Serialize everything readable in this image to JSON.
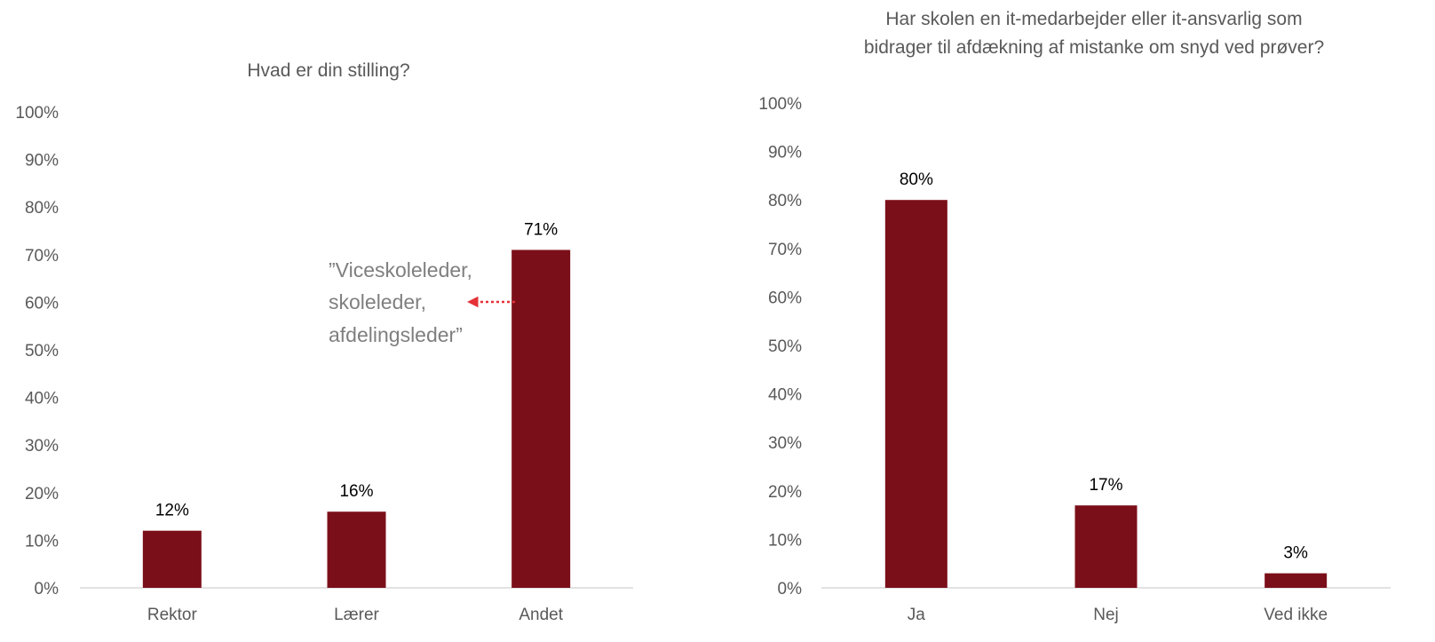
{
  "colors": {
    "bar": "#7b0f19",
    "axis": "#d9d9d9",
    "arrow": "#e53238"
  },
  "chart_data": [
    {
      "type": "bar",
      "title": "Hvad er din stilling?",
      "categories": [
        "Rektor",
        "Lærer",
        "Andet"
      ],
      "values": [
        12,
        16,
        71
      ],
      "data_labels": [
        "12%",
        "16%",
        "71%"
      ],
      "ylim": [
        0,
        100
      ],
      "y_ticks": [
        "0%",
        "10%",
        "20%",
        "30%",
        "40%",
        "50%",
        "60%",
        "70%",
        "80%",
        "90%",
        "100%"
      ],
      "grid": false,
      "annotation": {
        "lines": [
          "”Viceskoleleder,",
          "skoleleder,",
          "afdelingsleder”"
        ],
        "points_to": "Andet"
      }
    },
    {
      "type": "bar",
      "title_lines": [
        "Har skolen en it-medarbejder eller it-ansvarlig som",
        "bidrager til afdækning af mistanke om snyd ved prøver?"
      ],
      "categories": [
        "Ja",
        "Nej",
        "Ved ikke"
      ],
      "values": [
        80,
        17,
        3
      ],
      "data_labels": [
        "80%",
        "17%",
        "3%"
      ],
      "ylim": [
        0,
        100
      ],
      "y_ticks": [
        "0%",
        "10%",
        "20%",
        "30%",
        "40%",
        "50%",
        "60%",
        "70%",
        "80%",
        "90%",
        "100%"
      ],
      "grid": false
    }
  ]
}
